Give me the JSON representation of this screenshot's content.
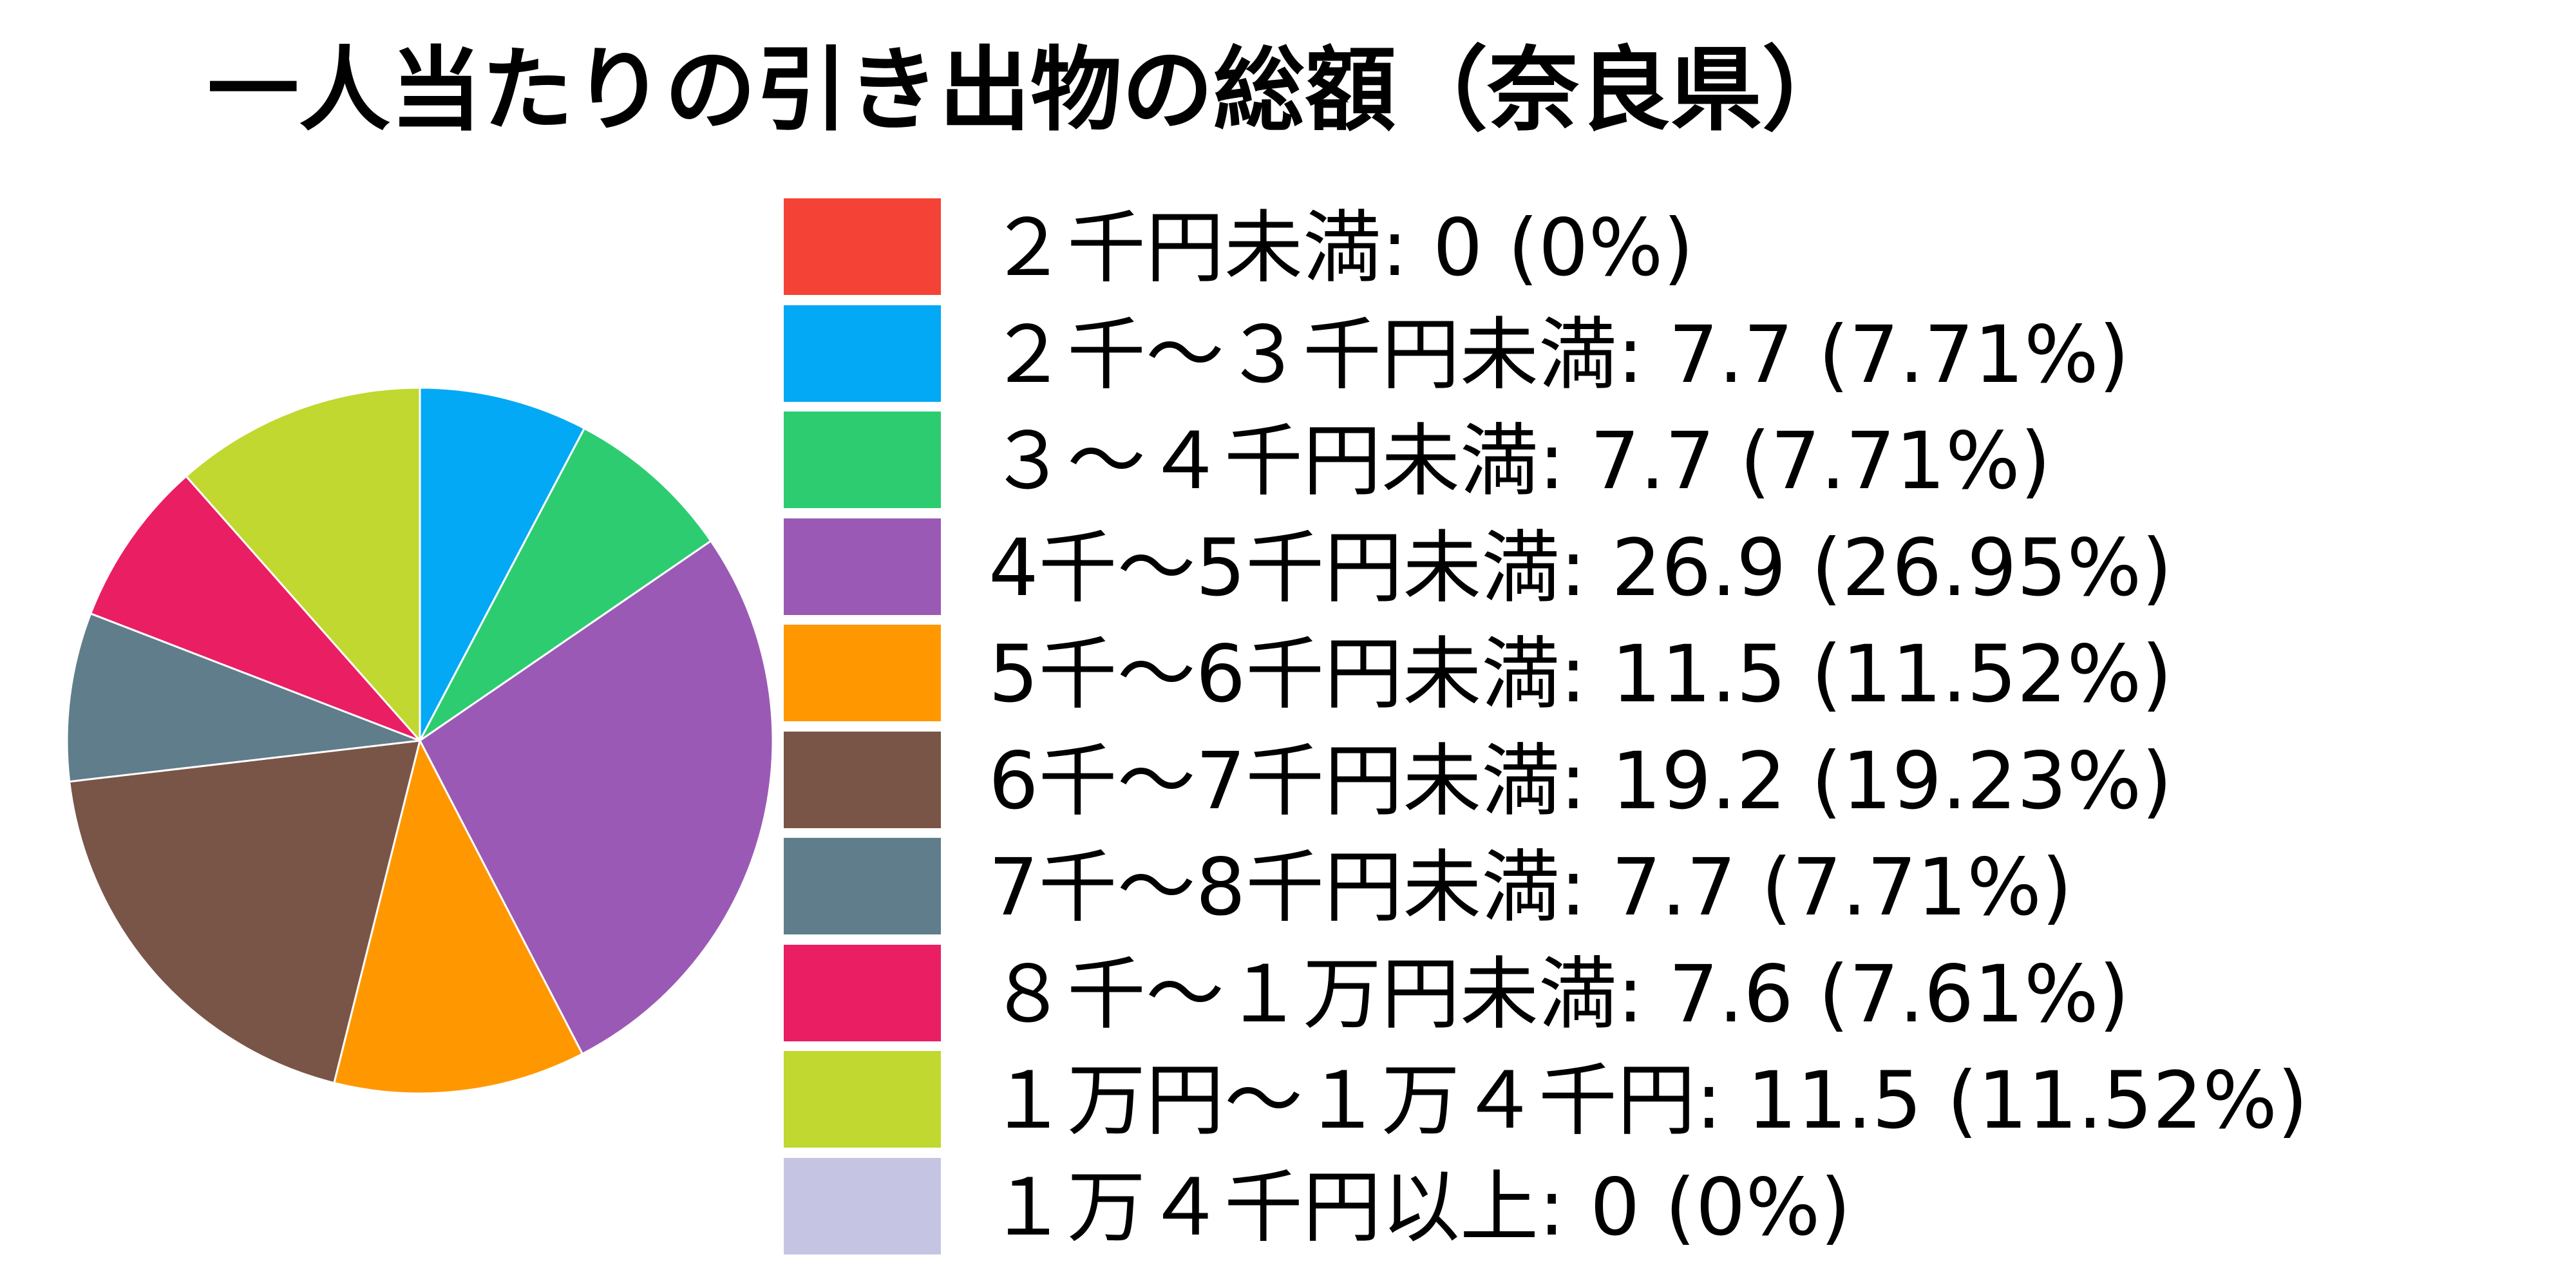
{
  "chart_data": {
    "type": "pie",
    "title": "一人当たりの引き出物の総額（奈良県）",
    "legend_position": "right",
    "slices": [
      {
        "label": "２千円未満",
        "value": 0,
        "percent": "0%",
        "color": "#f44336"
      },
      {
        "label": "２千～３千円未満",
        "value": 7.7,
        "percent": "7.71%",
        "color": "#03a9f4"
      },
      {
        "label": "３～４千円未満",
        "value": 7.7,
        "percent": "7.71%",
        "color": "#2ecc71"
      },
      {
        "label": "4千～5千円未満",
        "value": 26.9,
        "percent": "26.95%",
        "color": "#9b59b6"
      },
      {
        "label": "5千～6千円未満",
        "value": 11.5,
        "percent": "11.52%",
        "color": "#ff9800"
      },
      {
        "label": "6千～7千円未満",
        "value": 19.2,
        "percent": "19.23%",
        "color": "#795548"
      },
      {
        "label": "7千～8千円未満",
        "value": 7.7,
        "percent": "7.71%",
        "color": "#607d8b"
      },
      {
        "label": "８千～１万円未満",
        "value": 7.6,
        "percent": "7.61%",
        "color": "#e91e63"
      },
      {
        "label": "１万円～１万４千円",
        "value": 11.5,
        "percent": "11.52%",
        "color": "#c0d82f"
      },
      {
        "label": "１万４千円以上",
        "value": 0,
        "percent": "0%",
        "color": "#c5c5e3"
      }
    ]
  }
}
